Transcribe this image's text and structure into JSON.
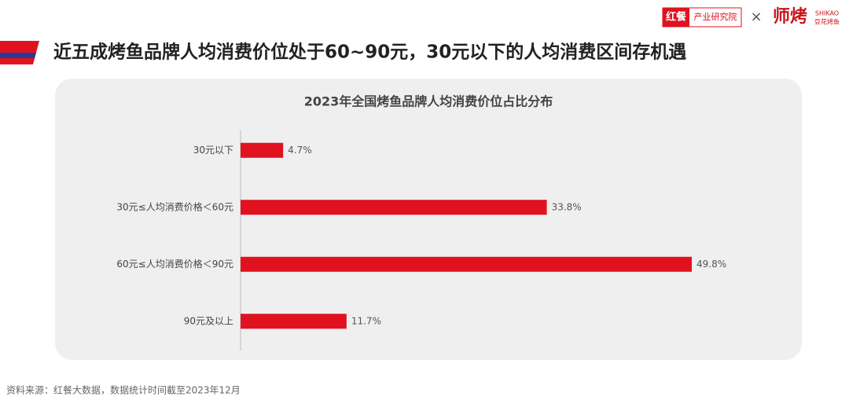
{
  "header": {
    "title": "近五成烤鱼品牌人均消费价位处于60~90元，30元以下的人均消费区间存机遇",
    "logo_left": "红餐",
    "logo_left_sub": "产业研究院",
    "logo_sep": "×",
    "logo_right": "师烤",
    "logo_right_en": "SHIKAO",
    "logo_right_sub": "豆花烤鱼"
  },
  "chart_data": {
    "type": "hbar",
    "title": "2023年全国烤鱼品牌人均消费价位占比分布",
    "categories": [
      "30元以下",
      "30元≤人均消费价格＜60元",
      "60元≤人均消费价格＜90元",
      "90元及以上"
    ],
    "values": [
      4.7,
      33.8,
      49.8,
      11.7
    ],
    "value_labels": [
      "4.7%",
      "33.8%",
      "49.8%",
      "11.7%"
    ],
    "color": "#e0121f"
  },
  "footer": {
    "source": "资料来源：红餐大数据，数据统计时间截至2023年12月"
  }
}
